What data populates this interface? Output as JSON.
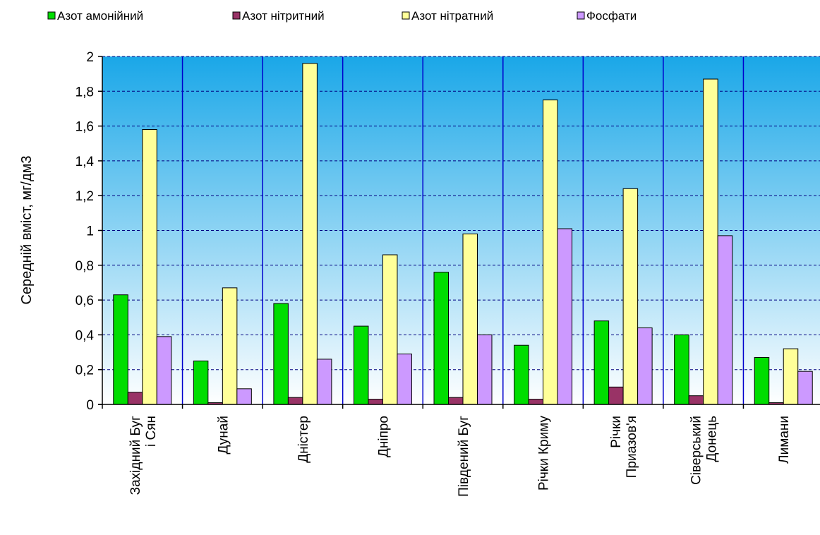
{
  "chart_data": {
    "type": "bar",
    "ylabel": "Середній вміст, мг/дм3",
    "ylim": [
      0,
      2
    ],
    "y_ticks": [
      "0",
      "0,2",
      "0,4",
      "0,6",
      "0,8",
      "1",
      "1,2",
      "1,4",
      "1,6",
      "1,8",
      "2"
    ],
    "grid": true,
    "legend_position": "top",
    "categories": [
      [
        "Західний Буг",
        "і Сян"
      ],
      [
        "Дунай"
      ],
      [
        "Дністер"
      ],
      [
        "Дніпро"
      ],
      [
        "Південий Буг"
      ],
      [
        "Річки Криму"
      ],
      [
        "Річки",
        "Приазов'я"
      ],
      [
        "Сіверський",
        "Донець"
      ],
      [
        "Лимани"
      ]
    ],
    "series": [
      {
        "name": "Азот амонійний",
        "color": "#00dd00",
        "values": [
          0.63,
          0.25,
          0.58,
          0.45,
          0.76,
          0.34,
          0.48,
          0.4,
          0.27
        ]
      },
      {
        "name": "Азот нітритний",
        "color": "#993366",
        "values": [
          0.07,
          0.01,
          0.04,
          0.03,
          0.04,
          0.03,
          0.1,
          0.05,
          0.01
        ]
      },
      {
        "name": "Азот нітратний",
        "color": "#ffff99",
        "values": [
          1.58,
          0.67,
          1.96,
          0.86,
          0.98,
          1.75,
          1.24,
          1.87,
          0.32
        ]
      },
      {
        "name": "Фосфати",
        "color": "#cc99ff",
        "values": [
          0.39,
          0.09,
          0.26,
          0.29,
          0.4,
          1.01,
          0.44,
          0.97,
          0.19
        ]
      }
    ],
    "plot_background": [
      "#1aa7e8",
      "#ffffff"
    ],
    "vertical_divider_color": "#0000cc"
  }
}
